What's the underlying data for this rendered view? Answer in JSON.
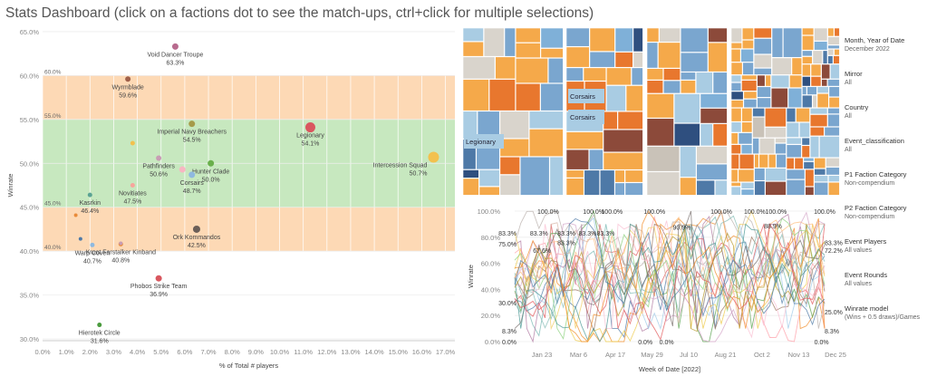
{
  "title": "Stats Dashboard (click on a factions dot to see the match-ups, ctrl+click for multiple selections)",
  "colors": {
    "band_orange": "#fdd9b5",
    "band_green": "#c7e8bf",
    "tableau": [
      "#f5a94a",
      "#7aa6cf",
      "#a9cce3",
      "#d9d4cc",
      "#e8772e",
      "#4e79a7",
      "#8c4a3a",
      "#2f4f7f",
      "#7fb0d8",
      "#c9c2b8"
    ]
  },
  "scatter": {
    "chart_data": {
      "type": "scatter",
      "xlabel": "% of Total # players",
      "ylabel": "Winrate",
      "x_ticks": [
        "0.0%",
        "1.0%",
        "2.0%",
        "3.0%",
        "4.0%",
        "5.0%",
        "6.0%",
        "7.0%",
        "8.0%",
        "9.0%",
        "10.0%",
        "11.0%",
        "12.0%",
        "13.0%",
        "14.0%",
        "15.0%",
        "16.0%",
        "17.0%"
      ],
      "y_ticks": [
        "30.0%",
        "35.0%",
        "40.0%",
        "45.0%",
        "50.0%",
        "55.0%",
        "60.0%",
        "65.0%"
      ],
      "xlim": [
        0,
        17.4
      ],
      "ylim": [
        29.8,
        65.2
      ],
      "bands": [
        {
          "from": 55,
          "to": 60,
          "color": "orange",
          "top_label": "60.0%",
          "bottom_label": "55.0%"
        },
        {
          "from": 45,
          "to": 55,
          "color": "green",
          "top_label": "",
          "bottom_label": "45.0%"
        },
        {
          "from": 40,
          "to": 45,
          "color": "orange",
          "top_label": "",
          "bottom_label": "40.0%"
        }
      ],
      "points": [
        {
          "name": "Void Dancer Troupe",
          "value": "63.3%",
          "x": 5.6,
          "y": 63.3,
          "r": 3.5,
          "color": "#b86b8e",
          "label": true
        },
        {
          "name": "Wyrmblade",
          "value": "59.6%",
          "x": 3.6,
          "y": 59.6,
          "r": 3,
          "color": "#a0604a",
          "label": true
        },
        {
          "name": "Imperial Navy Breachers",
          "value": "54.5%",
          "x": 6.3,
          "y": 54.5,
          "r": 3.5,
          "color": "#a59b4a",
          "label": true
        },
        {
          "name": "Legionary",
          "value": "54.1%",
          "x": 11.3,
          "y": 54.1,
          "r": 5.5,
          "color": "#d9575f",
          "label": true
        },
        {
          "name": "Intercession Squad",
          "value": "50.7%",
          "x": 16.5,
          "y": 50.7,
          "r": 6,
          "color": "#f2c14e",
          "label": true
        },
        {
          "name": "Hunter Clade",
          "value": "50.0%",
          "x": 7.1,
          "y": 50.0,
          "r": 3.5,
          "color": "#6ab04c",
          "label": true
        },
        {
          "name": "Pathfinders",
          "value": "50.6%",
          "x": 4.9,
          "y": 50.6,
          "r": 3,
          "color": "#c89db4",
          "label": true
        },
        {
          "name": "Corsairs",
          "value": "48.7%",
          "x": 6.3,
          "y": 48.7,
          "r": 3.5,
          "color": "#8fb9e0",
          "label": true
        },
        {
          "name": "Novitiates",
          "value": "47.5%",
          "x": 3.8,
          "y": 47.5,
          "r": 2.5,
          "color": "#f7a59c",
          "label": true
        },
        {
          "name": "Kasrkin",
          "value": "46.4%",
          "x": 2.0,
          "y": 46.4,
          "r": 2.5,
          "color": "#5ba393",
          "label": true
        },
        {
          "name": "Kroot Farstalker Kinband",
          "value": "40.8%",
          "x": 3.3,
          "y": 40.8,
          "r": 2.5,
          "color": "#e98b3a",
          "label": true
        },
        {
          "name": "Ork Kommandos",
          "value": "42.5%",
          "x": 6.5,
          "y": 42.5,
          "r": 4,
          "color": "#6b5f58",
          "label": true
        },
        {
          "name": "Warp Coven",
          "value": "40.7%",
          "x": 2.1,
          "y": 40.7,
          "r": 2.5,
          "color": "#8fb9e0",
          "label": true
        },
        {
          "name": "Phobos Strike Team",
          "value": "36.9%",
          "x": 4.9,
          "y": 36.9,
          "r": 3.5,
          "color": "#d9575f",
          "label": true
        },
        {
          "name": "Hierotek Circle",
          "value": "31.6%",
          "x": 2.4,
          "y": 31.6,
          "r": 2.5,
          "color": "#4a9b3e",
          "label": true
        },
        {
          "name": "",
          "value": "",
          "x": 3.8,
          "y": 52.3,
          "r": 2.5,
          "color": "#f2c14e",
          "label": false
        },
        {
          "name": "",
          "value": "",
          "x": 5.9,
          "y": 49.3,
          "r": 3.5,
          "color": "#f7b6c2",
          "label": false
        },
        {
          "name": "",
          "value": "",
          "x": 1.4,
          "y": 44.1,
          "r": 2,
          "color": "#e98b3a",
          "label": false
        },
        {
          "name": "",
          "value": "",
          "x": 1.6,
          "y": 41.4,
          "r": 2,
          "color": "#4e79a7",
          "label": false
        },
        {
          "name": "",
          "value": "",
          "x": 3.3,
          "y": 40.9,
          "r": 2,
          "color": "#c89db4",
          "label": false
        }
      ]
    }
  },
  "treemap": {
    "labels": {
      "corsairs_1": "Corsairs",
      "corsairs_2": "Corsairs",
      "legionary": "Legionary"
    }
  },
  "line": {
    "chart_data": {
      "type": "line",
      "xlabel": "Week of Date [2022]",
      "ylabel": "Winrate",
      "x_ticks": [
        "Jan 23",
        "Mar 6",
        "Apr 17",
        "May 29",
        "Jul 10",
        "Aug 21",
        "Oct 2",
        "Nov 13",
        "Dec 25"
      ],
      "y_ticks": [
        "0.0%",
        "20.0%",
        "40.0%",
        "60.0%",
        "80.0%",
        "100.0%"
      ],
      "ylim": [
        0,
        100
      ],
      "weeks": 52,
      "series_count": 24,
      "annotations": [
        {
          "text": "100.0%",
          "w": 5.5,
          "y": 100
        },
        {
          "text": "100.0%",
          "w": 13,
          "y": 100
        },
        {
          "text": "100.0%",
          "w": 16,
          "y": 100
        },
        {
          "text": "100.0%",
          "w": 23,
          "y": 100
        },
        {
          "text": "100.0%",
          "w": 34,
          "y": 100
        },
        {
          "text": "100.0%",
          "w": 39.5,
          "y": 100
        },
        {
          "text": "100.0%",
          "w": 43,
          "y": 100
        },
        {
          "text": "100.0%",
          "w": 51,
          "y": 100
        },
        {
          "text": "83.3%",
          "w": 0.5,
          "y": 83.3
        },
        {
          "text": "83.3%",
          "w": 4,
          "y": 83.3
        },
        {
          "text": "83.3%",
          "w": 8.5,
          "y": 83.3
        },
        {
          "text": "83.3%",
          "w": 12,
          "y": 83.3
        },
        {
          "text": "83.3%",
          "w": 15,
          "y": 83.3
        },
        {
          "text": "83.3%",
          "w": 8.5,
          "y": 76
        },
        {
          "text": "90.0%",
          "w": 27.5,
          "y": 88
        },
        {
          "text": "88.9%",
          "w": 42.5,
          "y": 88.9
        },
        {
          "text": "75.0%",
          "w": 0,
          "y": 75
        },
        {
          "text": "67.6%",
          "w": 4.5,
          "y": 70
        },
        {
          "text": "83.3%",
          "w": 51,
          "y": 76
        },
        {
          "text": "72.2%",
          "w": 51,
          "y": 70
        },
        {
          "text": "30.0%",
          "w": 0,
          "y": 30
        },
        {
          "text": "25.0%",
          "w": 51,
          "y": 23
        },
        {
          "text": "8.3%",
          "w": 0,
          "y": 8.3
        },
        {
          "text": "8.3%",
          "w": 51.5,
          "y": 8.3
        },
        {
          "text": "0.0%",
          "w": 0,
          "y": 0
        },
        {
          "text": "0.0%",
          "w": 21.5,
          "y": 0
        },
        {
          "text": "0.0%",
          "w": 25,
          "y": 0
        },
        {
          "text": "0.0%",
          "w": 50.5,
          "y": 0
        }
      ]
    }
  },
  "filters": [
    {
      "label": "Month, Year of Date",
      "value": "December 2022"
    },
    {
      "label": "Mirror",
      "value": "All"
    },
    {
      "label": "Country",
      "value": "All"
    },
    {
      "label": "Event_classification",
      "value": "All"
    },
    {
      "label": "P1 Faction Category",
      "value": "Non-compendium"
    },
    {
      "label": "P2 Faction Category",
      "value": "Non-compendium"
    },
    {
      "label": "Event Players",
      "value": "All values"
    },
    {
      "label": "Event Rounds",
      "value": "All values"
    },
    {
      "label": "Winrate model",
      "value": "(Wins + 0.5 draws)/Games"
    }
  ]
}
